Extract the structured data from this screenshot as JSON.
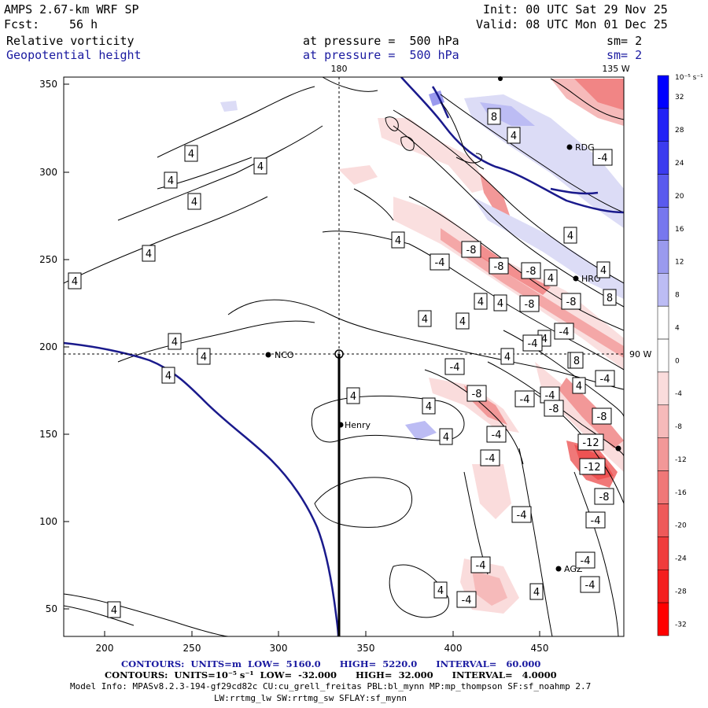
{
  "header": {
    "model": "AMPS 2.67-km WRF SP",
    "forecast_label": "Fcst:",
    "forecast_hour": "56 h",
    "init": "Init: 00 UTC Sat 29 Nov 25",
    "valid": "Valid: 08 UTC Mon 01 Dec 25",
    "field1": "Relative vorticity",
    "field1_level": "at pressure =  500 hPa",
    "field1_smooth": "sm= 2",
    "field2": "Geopotential height",
    "field2_level": "at pressure =  500 hPa",
    "field2_smooth": "sm= 2"
  },
  "map": {
    "x_ticks": [
      "200",
      "250",
      "300",
      "350",
      "400",
      "450"
    ],
    "y_ticks": [
      "350",
      "300",
      "250",
      "200",
      "150",
      "100",
      "50"
    ],
    "meridian_top_label": "180",
    "meridian_right_top_label": "135 W",
    "parallel_right_label": "90 W",
    "stations": [
      {
        "name": "NCO",
        "label": "NCO"
      },
      {
        "name": "Henry",
        "label": "Henry"
      },
      {
        "name": "RDG",
        "label": "RDG"
      },
      {
        "name": "HRO",
        "label": "HRO"
      },
      {
        "name": "AGZ",
        "label": "AGZ"
      }
    ],
    "contour_labels": [
      "4",
      "4",
      "4",
      "4",
      "4",
      "4",
      "4",
      "4",
      "4",
      "4",
      "4",
      "4",
      "4",
      "4",
      "4",
      "4",
      "4",
      "4",
      "4",
      "4",
      "4",
      "4",
      "4",
      "4",
      "4",
      "4",
      "4",
      "4",
      "-4",
      "-4",
      "-4",
      "-4",
      "-4",
      "-4",
      "-4",
      "-4",
      "-4",
      "-4",
      "-4",
      "-4",
      "-4",
      "-4",
      "-4",
      "-4",
      "-8",
      "-8",
      "-8",
      "-8",
      "-8",
      "-8",
      "-8",
      "-8",
      "-8",
      "-12",
      "-12",
      "8",
      "8",
      "8"
    ]
  },
  "colorbar": {
    "unit_label": "10⁻⁵ s⁻¹",
    "levels": [
      "32",
      "28",
      "24",
      "20",
      "16",
      "12",
      "8",
      "4",
      "0",
      "-4",
      "-8",
      "-12",
      "-16",
      "-20",
      "-24",
      "-28",
      "-32"
    ],
    "colors": [
      "#0000ff",
      "#2222f6",
      "#3b3bef",
      "#5a5aee",
      "#7777ee",
      "#9a9aee",
      "#bcbcf4",
      "#ffffff",
      "#ffffff",
      "#fadcdc",
      "#f6baba",
      "#f29898",
      "#f07878",
      "#ee5a5a",
      "#f03c3c",
      "#f41e1e",
      "#ff0000"
    ]
  },
  "footer": {
    "contours_height": "CONTOURS:  UNITS=m  LOW=  5160.0      HIGH=  5220.0      INTERVAL=   60.000",
    "contours_vort": "CONTOURS:  UNITS=10⁻⁵ s⁻¹  LOW=  -32.000      HIGH=  32.000      INTERVAL=   4.0000",
    "model_info": "Model Info: MPASv8.2.3-194-gf29cd82c CU:cu_grell_freitas PBL:bl_mynn MP:mp_thompson SF:sf_noahmp 2.7",
    "model_info2": "LW:rrtmg_lw SW:rrtmg_sw SFLAY:sf_mynn"
  }
}
